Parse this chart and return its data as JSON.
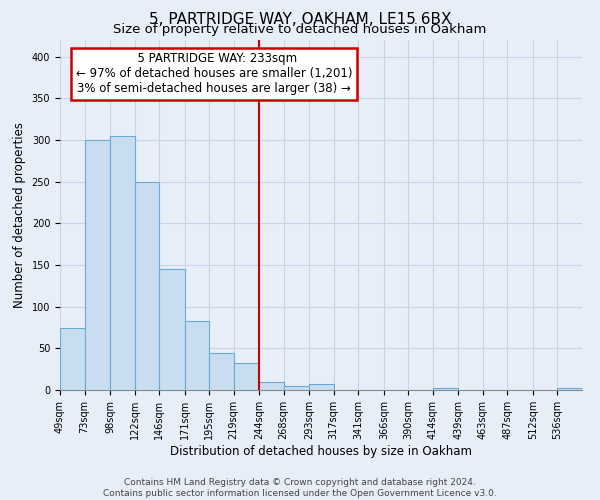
{
  "title": "5, PARTRIDGE WAY, OAKHAM, LE15 6BX",
  "subtitle": "Size of property relative to detached houses in Oakham",
  "xlabel": "Distribution of detached houses by size in Oakham",
  "ylabel": "Number of detached properties",
  "bin_edges": [
    49,
    73,
    98,
    122,
    146,
    171,
    195,
    219,
    244,
    268,
    293,
    317,
    341,
    366,
    390,
    414,
    439,
    463,
    487,
    512,
    536
  ],
  "bar_heights": [
    75,
    300,
    305,
    250,
    145,
    83,
    45,
    33,
    10,
    5,
    7,
    0,
    0,
    0,
    0,
    2,
    0,
    0,
    0,
    0,
    2
  ],
  "bar_color": "#c8ddf0",
  "bar_edge_color": "#6aaad4",
  "vline_x": 244,
  "vline_color": "#cc0000",
  "annotation_title": "5 PARTRIDGE WAY: 233sqm",
  "annotation_line1": "← 97% of detached houses are smaller (1,201)",
  "annotation_line2": "3% of semi-detached houses are larger (38) →",
  "annotation_box_color": "white",
  "annotation_box_edge": "#cc0000",
  "ylim": [
    0,
    420
  ],
  "yticks": [
    0,
    50,
    100,
    150,
    200,
    250,
    300,
    350,
    400
  ],
  "footer_line1": "Contains HM Land Registry data © Crown copyright and database right 2024.",
  "footer_line2": "Contains public sector information licensed under the Open Government Licence v3.0.",
  "bg_color": "#e8eef8",
  "plot_bg_color": "#e8eef8",
  "grid_color": "#c8d4e8",
  "title_fontsize": 11,
  "subtitle_fontsize": 9.5,
  "axis_label_fontsize": 8.5,
  "tick_label_fontsize": 7,
  "annotation_fontsize": 8.5,
  "footer_fontsize": 6.5
}
